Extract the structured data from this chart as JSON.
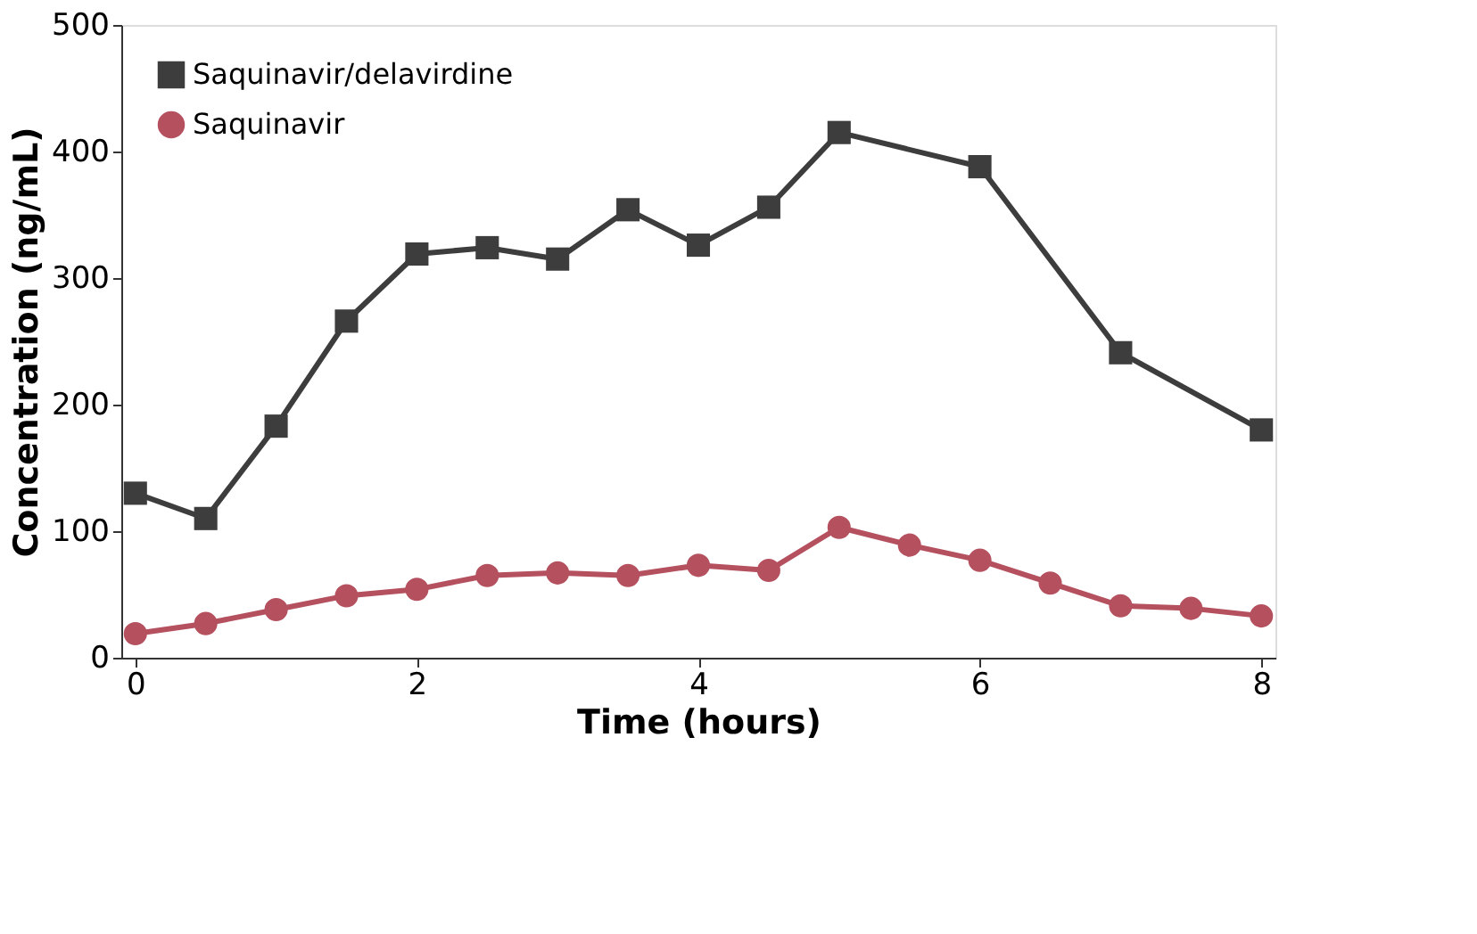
{
  "chart_data": {
    "type": "line",
    "xlabel": "Time (hours)",
    "ylabel": "Concentration (ng/mL)",
    "xlim": [
      -0.1,
      8.1
    ],
    "xticks": [
      0,
      2,
      4,
      6,
      8
    ],
    "ylim": [
      0,
      500
    ],
    "yticks": [
      0,
      100,
      200,
      300,
      400,
      500
    ],
    "grid": false,
    "legend": "top left",
    "marker": "square",
    "line_style": "solid",
    "series": [
      {
        "name": "Saquinavir/delavirdine",
        "color": "#3d3d3d",
        "marker": "square",
        "x": [
          0,
          0.5,
          1,
          1.5,
          2,
          2.5,
          3,
          3.5,
          4,
          4.5,
          5,
          6,
          7,
          8
        ],
        "values": [
          130,
          110,
          183,
          266,
          319,
          324,
          315,
          354,
          326,
          356,
          415,
          388,
          241,
          180
        ]
      },
      {
        "name": "Saquinavir",
        "color": "#b5505f",
        "marker": "circle",
        "x": [
          0,
          0.5,
          1,
          1.5,
          2,
          2.5,
          3,
          3.5,
          4,
          4.5,
          5,
          5.5,
          6,
          6.5,
          7,
          7.5,
          8
        ],
        "values": [
          19,
          27,
          38,
          49,
          54,
          65,
          67,
          65,
          73,
          69,
          103,
          89,
          77,
          59,
          41,
          39,
          33
        ]
      }
    ]
  }
}
